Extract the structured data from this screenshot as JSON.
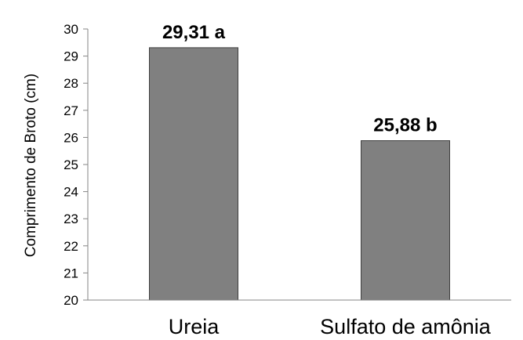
{
  "chart_data": {
    "type": "bar",
    "categories": [
      "Ureia",
      "Sulfato de amônia"
    ],
    "values": [
      29.31,
      25.88
    ],
    "data_labels": [
      "29,31 a",
      "25,88 b"
    ],
    "xlabel": "",
    "ylabel": "Comprimento de Broto (cm)",
    "ylim": [
      20,
      30
    ],
    "yticks": [
      20,
      21,
      22,
      23,
      24,
      25,
      26,
      27,
      28,
      29,
      30
    ],
    "grid": false,
    "legend": "none",
    "colors": {
      "bar": "#808080",
      "bar_edge": "#404040",
      "axis": "#868686"
    }
  }
}
